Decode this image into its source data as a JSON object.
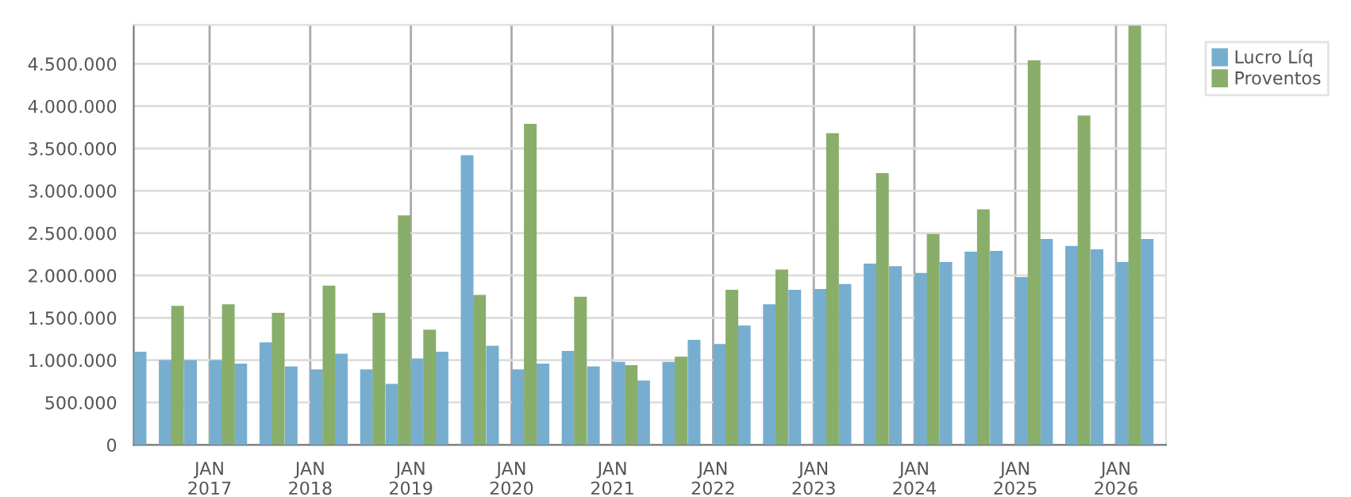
{
  "chart_data": {
    "type": "bar",
    "series": [
      {
        "name": "Lucro Líq",
        "color": "#77aed0",
        "x": [
          "2016-04",
          "2016-07",
          "2016-10",
          "2017-01",
          "2017-04",
          "2017-07",
          "2017-10",
          "2018-01",
          "2018-04",
          "2018-07",
          "2018-10",
          "2019-01",
          "2019-04",
          "2019-07",
          "2019-10",
          "2020-01",
          "2020-04",
          "2020-07",
          "2020-10",
          "2021-01",
          "2021-04",
          "2021-07",
          "2021-10",
          "2022-01",
          "2022-04",
          "2022-07",
          "2022-10",
          "2023-01",
          "2023-04",
          "2023-07",
          "2023-10",
          "2024-01",
          "2024-04",
          "2024-07",
          "2024-10",
          "2025-01",
          "2025-04",
          "2025-07",
          "2025-10",
          "2026-01",
          "2026-04"
        ],
        "values": [
          1100000,
          1000000,
          1000000,
          1000000,
          960000,
          1210000,
          925000,
          890000,
          1075000,
          890000,
          720000,
          1020000,
          1100000,
          3420000,
          1170000,
          890000,
          960000,
          1110000,
          925000,
          980000,
          760000,
          980000,
          1240000,
          1190000,
          1410000,
          1660000,
          1830000,
          1840000,
          1900000,
          2140000,
          2110000,
          2030000,
          2160000,
          2280000,
          2290000,
          1980000,
          2430000,
          2350000,
          2310000,
          2160000,
          2430000
        ]
      },
      {
        "name": "Proventos",
        "color": "#88ae6a",
        "x": [
          "2016-08-15",
          "2017-02-15",
          "2017-08-15",
          "2018-02-15",
          "2018-08-15",
          "2018-11-15",
          "2019-02-15",
          "2019-08-15",
          "2020-02-15",
          "2020-08-15",
          "2021-02-15",
          "2021-08-15",
          "2022-02-15",
          "2022-08-15",
          "2023-02-15",
          "2023-08-15",
          "2024-02-15",
          "2024-08-15",
          "2025-02-15",
          "2025-08-15",
          "2026-02-15"
        ],
        "values": [
          1640000,
          1660000,
          1560000,
          1880000,
          1560000,
          2710000,
          1360000,
          1770000,
          3790000,
          1750000,
          940000,
          1040000,
          1830000,
          2070000,
          3680000,
          3210000,
          2490000,
          2780000,
          4540000,
          3890000,
          4950000
        ]
      }
    ],
    "xlim": [
      "2016-04",
      "2026-07"
    ],
    "xticks": [
      {
        "value": "2017-01",
        "label": "JAN\n2017"
      },
      {
        "value": "2018-01",
        "label": "JAN\n2018"
      },
      {
        "value": "2019-01",
        "label": "JAN\n2019"
      },
      {
        "value": "2020-01",
        "label": "JAN\n2020"
      },
      {
        "value": "2021-01",
        "label": "JAN\n2021"
      },
      {
        "value": "2022-01",
        "label": "JAN\n2022"
      },
      {
        "value": "2023-01",
        "label": "JAN\n2023"
      },
      {
        "value": "2024-01",
        "label": "JAN\n2024"
      },
      {
        "value": "2025-01",
        "label": "JAN\n2025"
      },
      {
        "value": "2026-01",
        "label": "JAN\n2026"
      }
    ],
    "ylim": [
      0,
      4960000
    ],
    "yticks": [
      0,
      {
        "value": 500000,
        "label": "500.000"
      },
      {
        "value": 1000000,
        "label": "1.000.000"
      },
      {
        "value": 1500000,
        "label": "1.500.000"
      },
      {
        "value": 2000000,
        "label": "2.000.000"
      },
      {
        "value": 2500000,
        "label": "2.500.000"
      },
      {
        "value": 3000000,
        "label": "3.000.000"
      },
      {
        "value": 3500000,
        "label": "3.500.000"
      },
      {
        "value": 4000000,
        "label": "4.000.000"
      },
      {
        "value": 4500000,
        "label": "4.500.000"
      }
    ],
    "grid": true,
    "legend": "top right"
  }
}
